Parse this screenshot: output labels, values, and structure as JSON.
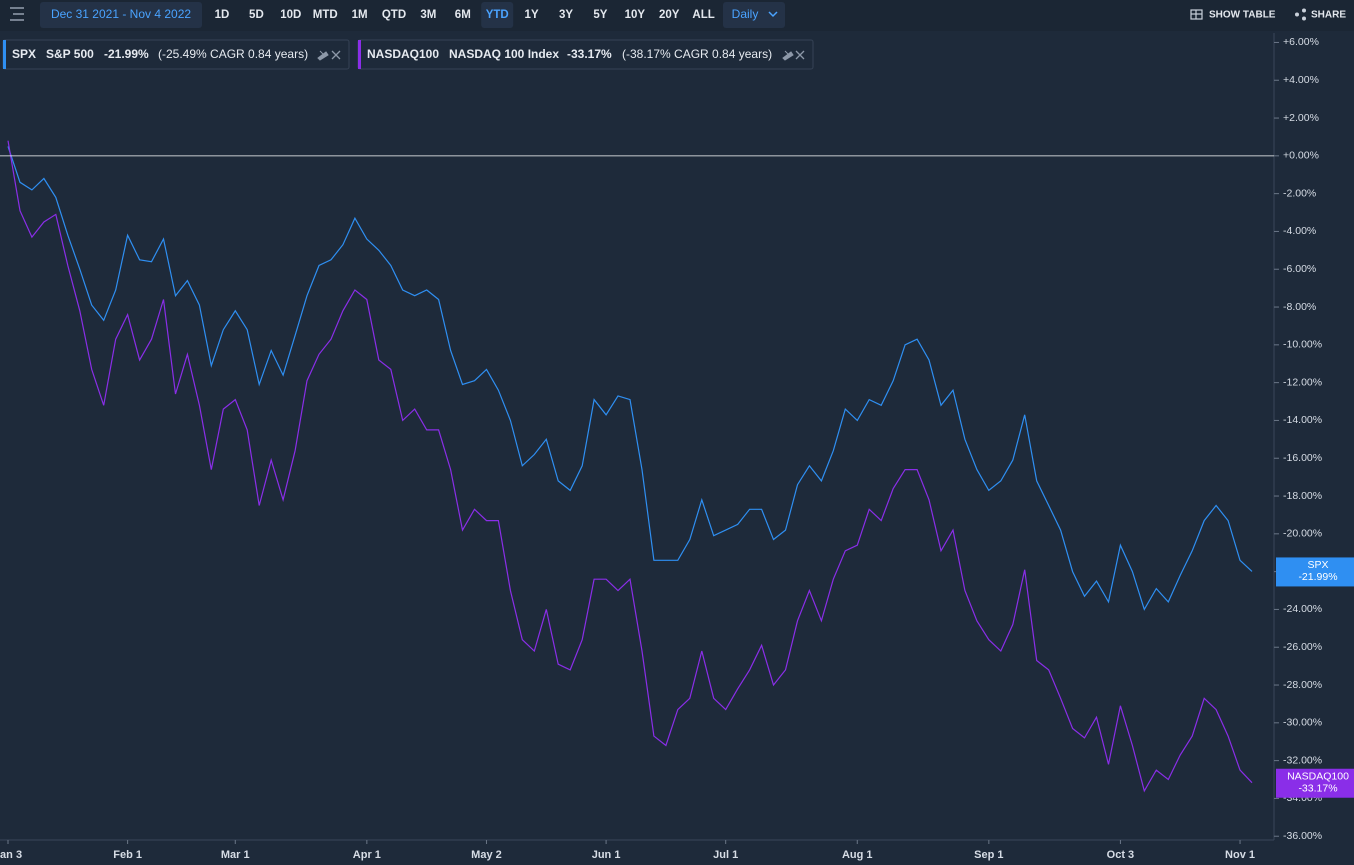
{
  "toolbar": {
    "date_range": "Dec 31 2021 - Nov 4 2022",
    "ranges": [
      "1D",
      "5D",
      "10D",
      "MTD",
      "1M",
      "QTD",
      "3M",
      "6M",
      "YTD",
      "1Y",
      "3Y",
      "5Y",
      "10Y",
      "20Y",
      "ALL"
    ],
    "selected": "YTD",
    "interval": "Daily",
    "show_table": "SHOW TABLE",
    "share": "SHARE"
  },
  "chart_data": {
    "type": "line",
    "categories": [
      "Jan 3",
      null,
      null,
      null,
      null,
      null,
      null,
      null,
      null,
      null,
      "Feb 1",
      null,
      null,
      null,
      null,
      null,
      null,
      null,
      null,
      "Mar 1",
      null,
      null,
      null,
      null,
      null,
      null,
      null,
      null,
      null,
      null,
      "Apr 1",
      null,
      null,
      null,
      null,
      null,
      null,
      null,
      null,
      null,
      "May 2",
      null,
      null,
      null,
      null,
      null,
      null,
      null,
      null,
      null,
      "Jun 1",
      null,
      null,
      null,
      null,
      null,
      null,
      null,
      null,
      null,
      "Jul 1",
      null,
      null,
      null,
      null,
      null,
      null,
      null,
      null,
      null,
      null,
      "Aug 1",
      null,
      null,
      null,
      null,
      null,
      null,
      null,
      null,
      null,
      null,
      "Sep 1",
      null,
      null,
      null,
      null,
      null,
      null,
      null,
      null,
      null,
      null,
      "Oct 3",
      null,
      null,
      null,
      null,
      null,
      null,
      null,
      null,
      null,
      "Nov 1",
      null
    ],
    "series": [
      {
        "name": "SPX",
        "description": "S&P 500",
        "last_label": "-21.99%",
        "cagr_label": "(-25.49% CAGR 0.84 years)",
        "color": "#2f8ff2",
        "values": [
          0.5,
          -1.4,
          -1.8,
          -1.2,
          -2.2,
          -4.2,
          -6.0,
          -7.9,
          -8.7,
          -7.1,
          -4.2,
          -5.5,
          -5.6,
          -4.4,
          -7.4,
          -6.6,
          -7.9,
          -11.1,
          -9.2,
          -8.2,
          -9.2,
          -12.1,
          -10.3,
          -11.6,
          -9.5,
          -7.4,
          -5.8,
          -5.5,
          -4.7,
          -3.3,
          -4.4,
          -5.0,
          -5.8,
          -7.1,
          -7.4,
          -7.1,
          -7.6,
          -10.3,
          -12.1,
          -11.9,
          -11.3,
          -12.4,
          -14.0,
          -16.4,
          -15.8,
          -15.0,
          -17.2,
          -17.7,
          -16.4,
          -12.9,
          -13.7,
          -12.7,
          -12.9,
          -16.6,
          -21.4,
          -21.4,
          -21.4,
          -20.3,
          -18.2,
          -20.1,
          -19.8,
          -19.5,
          -18.7,
          -18.7,
          -20.3,
          -19.8,
          -17.4,
          -16.4,
          -17.2,
          -15.6,
          -13.4,
          -14.0,
          -12.9,
          -13.2,
          -11.9,
          -10.0,
          -9.7,
          -10.8,
          -13.2,
          -12.4,
          -15.0,
          -16.6,
          -17.7,
          -17.2,
          -16.1,
          -13.7,
          -17.2,
          -18.5,
          -19.8,
          -22.0,
          -23.3,
          -22.5,
          -23.6,
          -20.6,
          -22.0,
          -24.0,
          -22.9,
          -23.6,
          -22.2,
          -20.9,
          -19.3,
          -18.5,
          -19.3,
          -21.4,
          -21.99
        ]
      },
      {
        "name": "NASDAQ100",
        "description": "NASDAQ 100 Index",
        "last_label": "-33.17%",
        "cagr_label": "(-38.17% CAGR 0.84 years)",
        "color": "#8a2ee8",
        "values": [
          0.8,
          -2.9,
          -4.3,
          -3.5,
          -3.1,
          -5.8,
          -8.2,
          -11.3,
          -13.2,
          -9.7,
          -8.4,
          -10.8,
          -9.7,
          -7.6,
          -12.6,
          -10.5,
          -13.2,
          -16.6,
          -13.4,
          -12.9,
          -14.5,
          -18.5,
          -16.1,
          -18.2,
          -15.6,
          -11.9,
          -10.5,
          -9.7,
          -8.2,
          -7.1,
          -7.6,
          -10.8,
          -11.3,
          -14.0,
          -13.4,
          -14.5,
          -14.5,
          -16.6,
          -19.8,
          -18.7,
          -19.3,
          -19.3,
          -23.0,
          -25.6,
          -26.2,
          -24.0,
          -26.9,
          -27.2,
          -25.6,
          -22.4,
          -22.4,
          -23.0,
          -22.4,
          -26.2,
          -30.7,
          -31.2,
          -29.3,
          -28.7,
          -26.2,
          -28.7,
          -29.3,
          -28.2,
          -27.2,
          -25.9,
          -28.0,
          -27.2,
          -24.6,
          -23.0,
          -24.6,
          -22.4,
          -20.9,
          -20.6,
          -18.7,
          -19.3,
          -17.6,
          -16.6,
          -16.6,
          -18.2,
          -20.9,
          -19.8,
          -23.0,
          -24.6,
          -25.6,
          -26.2,
          -24.8,
          -21.9,
          -26.7,
          -27.2,
          -28.7,
          -30.3,
          -30.8,
          -29.7,
          -32.2,
          -29.1,
          -31.2,
          -33.6,
          -32.5,
          -33.0,
          -31.7,
          -30.7,
          -28.7,
          -29.3,
          -30.7,
          -32.5,
          -33.17
        ]
      }
    ],
    "ylim": [
      -36.2,
      6.5
    ],
    "yticks": [
      {
        "value": 6,
        "label": "+6.00%"
      },
      {
        "value": 4,
        "label": "+4.00%"
      },
      {
        "value": 2,
        "label": "+2.00%"
      },
      {
        "value": 0,
        "label": "+0.00%"
      },
      {
        "value": -2,
        "label": "-2.00%"
      },
      {
        "value": -4,
        "label": "-4.00%"
      },
      {
        "value": -6,
        "label": "-6.00%"
      },
      {
        "value": -8,
        "label": "-8.00%"
      },
      {
        "value": -10,
        "label": "-10.00%"
      },
      {
        "value": -12,
        "label": "-12.00%"
      },
      {
        "value": -14,
        "label": "-14.00%"
      },
      {
        "value": -16,
        "label": "-16.00%"
      },
      {
        "value": -18,
        "label": "-18.00%"
      },
      {
        "value": -20,
        "label": "-20.00%"
      },
      {
        "value": -22,
        "label": "-22.00%"
      },
      {
        "value": -24,
        "label": "-24.00%"
      },
      {
        "value": -26,
        "label": "-26.00%"
      },
      {
        "value": -28,
        "label": "-28.00%"
      },
      {
        "value": -30,
        "label": "-30.00%"
      },
      {
        "value": -32,
        "label": "-32.00%"
      },
      {
        "value": -34,
        "label": "-34.00%"
      },
      {
        "value": -36,
        "label": "-36.00%"
      }
    ],
    "reference_line": 0
  }
}
